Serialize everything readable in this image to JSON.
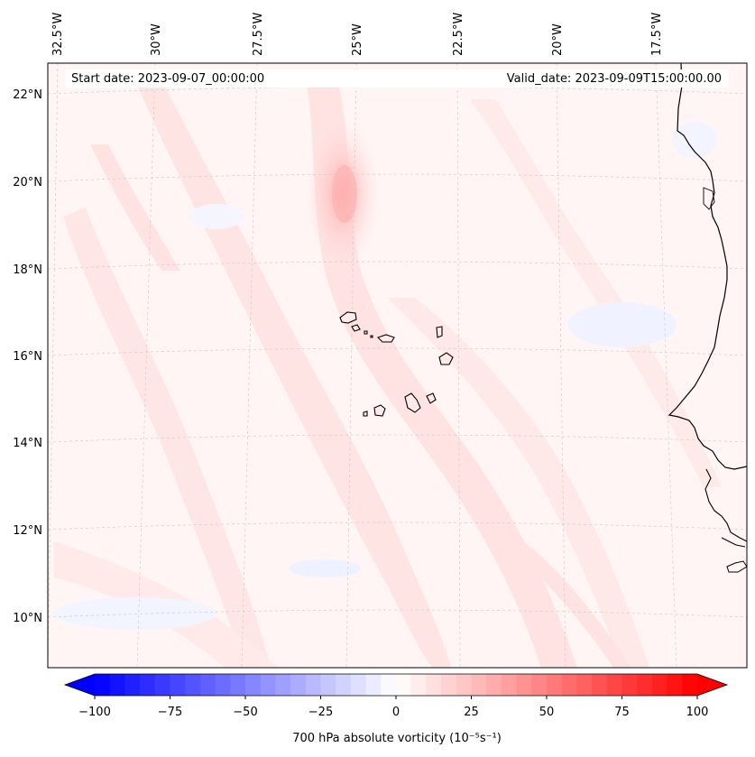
{
  "map": {
    "start_date_label": "Start date: 2023-09-07_00:00:00",
    "valid_date_label": "Valid_date: 2023-09-09T15:00:00.00",
    "lon_labels": [
      "32.5°W",
      "30°W",
      "27.5°W",
      "25°W",
      "22.5°W",
      "20°W",
      "17.5°W"
    ],
    "lat_labels": [
      "22°N",
      "20°N",
      "18°N",
      "16°N",
      "14°N",
      "12°N",
      "10°N"
    ],
    "colorbar": {
      "label": "700 hPa absolute vorticity (10⁻⁵s⁻¹)",
      "ticks": [
        "−100",
        "−75",
        "−50",
        "−25",
        "0",
        "25",
        "50",
        "75",
        "100"
      ],
      "min": -100,
      "max": 100,
      "color_negative": "#0000ff",
      "color_zero": "#ffffff",
      "color_positive": "#ff0000"
    },
    "colors": {
      "background": "#fff5f5",
      "coastline": "#000000",
      "grid": "#b0b0b0"
    }
  }
}
